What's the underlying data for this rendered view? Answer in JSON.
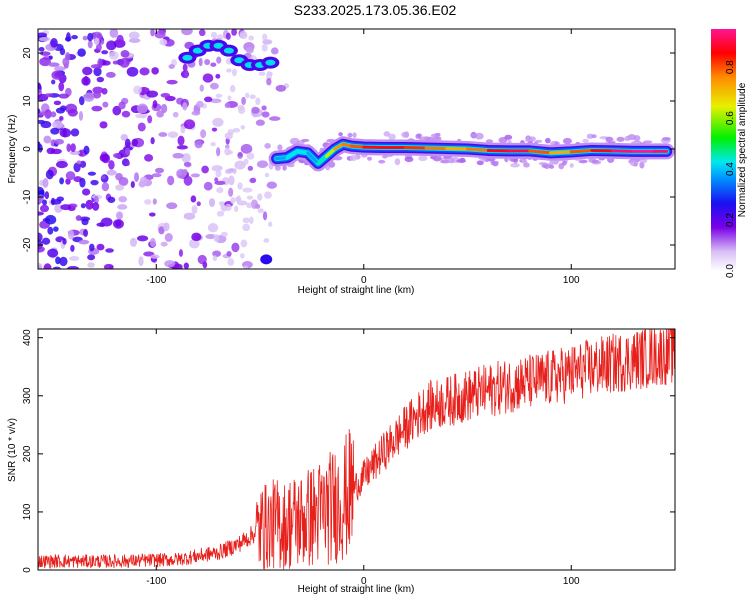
{
  "title": "S233.2025.173.05.36.E02",
  "chart_data": [
    {
      "type": "heatmap",
      "xlabel": "Height of straight line (km)",
      "ylabel": "Frequency (Hz)",
      "xlim": [
        -157,
        150
      ],
      "ylim": [
        -25,
        25
      ],
      "xticks": [
        -100,
        0,
        100
      ],
      "yticks": [
        -20,
        -10,
        0,
        10,
        20
      ],
      "colorbar": {
        "label": "Normalized spectral amplitude",
        "range": [
          0,
          0.95
        ],
        "ticks": [
          0.0,
          0.2,
          0.4,
          0.6,
          0.8
        ]
      },
      "signal_track": {
        "x": [
          -42,
          -37,
          -32,
          -27,
          -22,
          -18,
          -14,
          -10,
          -6,
          0,
          10,
          20,
          30,
          40,
          50,
          60,
          70,
          80,
          90,
          100,
          110,
          120,
          130,
          140,
          146
        ],
        "freq": [
          -2.0,
          -1.8,
          -0.5,
          -0.8,
          -3.0,
          -1.5,
          0.0,
          1.0,
          0.6,
          0.4,
          0.3,
          0.3,
          0.2,
          0.1,
          0.0,
          -0.3,
          -0.4,
          -0.4,
          -0.8,
          -0.6,
          -0.3,
          -0.4,
          -0.5,
          -0.5,
          -0.5
        ],
        "amplitude": [
          0.35,
          0.4,
          0.45,
          0.4,
          0.35,
          0.55,
          0.7,
          0.8,
          0.75,
          0.85,
          0.9,
          0.85,
          0.8,
          0.75,
          0.7,
          0.85,
          0.9,
          0.9,
          0.7,
          0.75,
          0.85,
          0.9,
          0.95,
          0.95,
          0.9
        ]
      },
      "upper_feature": {
        "x": [
          -85,
          -80,
          -75,
          -70,
          -65,
          -60,
          -55,
          -50,
          -45
        ],
        "freq": [
          19.0,
          20.5,
          21.5,
          21.5,
          20.5,
          18.5,
          17.5,
          17.5,
          18.0
        ]
      }
    },
    {
      "type": "line",
      "xlabel": "Height of straight line (km)",
      "ylabel": "SNR (10 * v/v)",
      "xlim": [
        -157,
        150
      ],
      "ylim": [
        0,
        415
      ],
      "xticks": [
        -100,
        0,
        100
      ],
      "yticks": [
        0,
        100,
        200,
        300,
        400
      ],
      "color": "#e8201c",
      "trend": {
        "x": [
          -157,
          -120,
          -90,
          -70,
          -60,
          -50,
          -40,
          -30,
          -20,
          -10,
          0,
          10,
          20,
          30,
          50,
          70,
          90,
          110,
          130,
          150
        ],
        "y": [
          15,
          15,
          18,
          30,
          45,
          70,
          80,
          85,
          100,
          120,
          160,
          205,
          245,
          280,
          300,
          318,
          330,
          348,
          362,
          375
        ]
      }
    }
  ]
}
